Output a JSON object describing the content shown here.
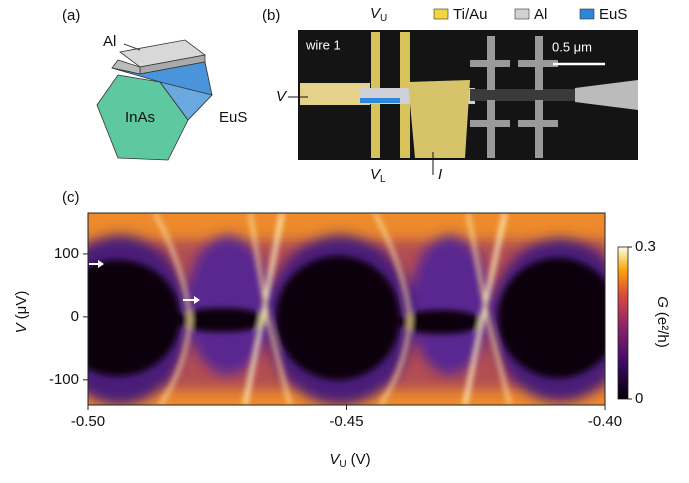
{
  "panel_a": {
    "label": "(a)",
    "al": "Al",
    "inas": "InAs",
    "eus": "EuS"
  },
  "panel_b": {
    "label": "(b)",
    "legend": [
      {
        "name": "Ti/Au",
        "color": "#f2d43c"
      },
      {
        "name": "Al",
        "color": "#d2d2d2"
      },
      {
        "name": "EuS",
        "color": "#2e86d8"
      }
    ],
    "wire": "wire 1",
    "scale_bar": "0.5 μm",
    "v_upper": {
      "main": "V",
      "sub": "U"
    },
    "v_lower": {
      "main": "V",
      "sub": "L"
    },
    "v": "V",
    "i": "I"
  },
  "chart_data": {
    "type": "heatmap",
    "label": "(c)",
    "x_label": {
      "main": "V",
      "sub": "U",
      "unit": "(V)"
    },
    "y_label": {
      "main": "V",
      "unit": "(μV)"
    },
    "xlim": [
      -0.5,
      -0.4
    ],
    "xticks": [
      {
        "value": -0.5,
        "label": "-0.50"
      },
      {
        "value": -0.45,
        "label": "-0.45"
      },
      {
        "value": -0.4,
        "label": "-0.40"
      }
    ],
    "ylim": [
      -140,
      165
    ],
    "yticks": [
      -100,
      0,
      100
    ],
    "colorbar": {
      "label": {
        "main": "G",
        "unit": "(e²/h)"
      },
      "lim": [
        0,
        0.3
      ],
      "ticks": [
        0,
        0.3
      ]
    }
  }
}
